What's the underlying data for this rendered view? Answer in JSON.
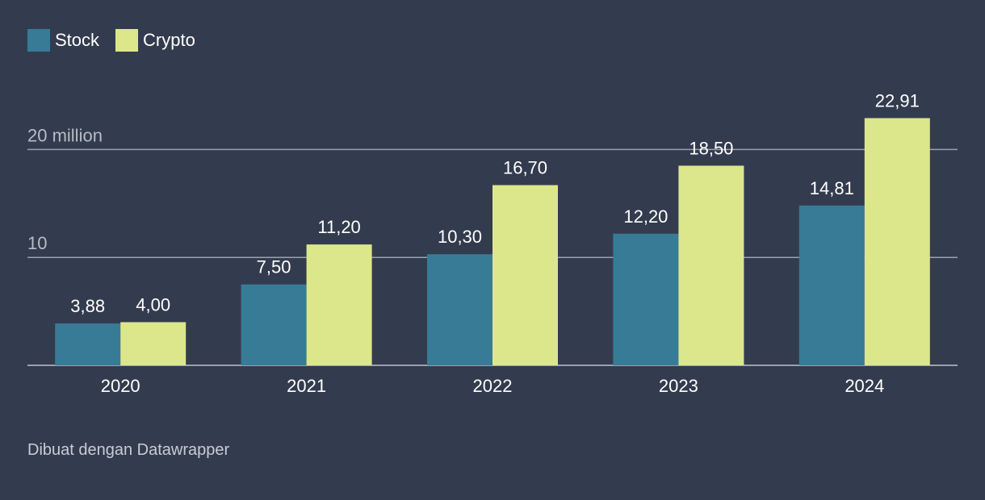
{
  "chart_data": {
    "type": "bar",
    "categories": [
      "2020",
      "2021",
      "2022",
      "2023",
      "2024"
    ],
    "series": [
      {
        "name": "Stock",
        "color": "#387b96",
        "values": [
          3.88,
          7.5,
          10.3,
          12.2,
          14.81
        ],
        "labels": [
          "3,88",
          "7,50",
          "10,30",
          "12,20",
          "14,81"
        ]
      },
      {
        "name": "Crypto",
        "color": "#dce78b",
        "values": [
          4.0,
          11.2,
          16.7,
          18.5,
          22.91
        ],
        "labels": [
          "4,00",
          "11,20",
          "16,70",
          "18,50",
          "22,91"
        ]
      }
    ],
    "yticks": [
      {
        "value": 10,
        "label": "10"
      },
      {
        "value": 20,
        "label": "20 million"
      }
    ],
    "ylim": [
      0,
      25
    ],
    "grid": true,
    "legend": "top-left"
  },
  "footer": "Dibuat dengan Datawrapper",
  "colors": {
    "background": "#333c4e",
    "gridline": "#9aa1ad",
    "axis_text": "#b7bcc6",
    "label_text": "#ffffff"
  }
}
